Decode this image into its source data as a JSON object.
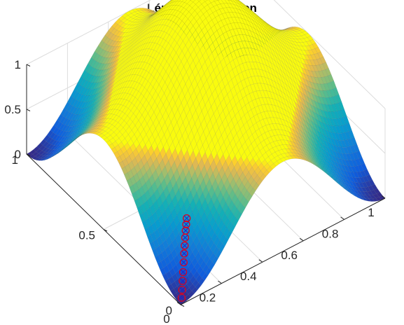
{
  "chart_data": {
    "type": "surface",
    "title": "Lépések a felületen",
    "xlabel": "",
    "ylabel": "",
    "zlabel": "",
    "xlim": [
      0,
      1
    ],
    "ylim": [
      0,
      1
    ],
    "zlim": [
      0,
      1
    ],
    "x_ticks": [
      "0",
      "0.2",
      "0.4",
      "0.6",
      "0.8",
      "1"
    ],
    "y_ticks": [
      "0",
      "0.5",
      "1"
    ],
    "z_ticks": [
      "0",
      "0.5",
      "1"
    ],
    "grid": true,
    "colormap": "parula",
    "surface": {
      "description": "z = 0.5*(2 - cos(2πx) - cos(2πy)), low in the centre, high on the edge midpoints",
      "peaks": [
        [
          0,
          0.5
        ],
        [
          1,
          0.5
        ],
        [
          0.5,
          0
        ],
        [
          0.5,
          1
        ]
      ],
      "minimum": [
        0.5,
        0.5
      ]
    },
    "steps": {
      "marker_colors": {
        "circle": "#e0001a",
        "cross": "#2222cc"
      },
      "points": [
        {
          "x": 0.02,
          "y": 0.02,
          "z": 0.02
        },
        {
          "x": 0.03,
          "y": 0.03,
          "z": 0.08
        },
        {
          "x": 0.04,
          "y": 0.04,
          "z": 0.15
        },
        {
          "x": 0.05,
          "y": 0.05,
          "z": 0.22
        },
        {
          "x": 0.06,
          "y": 0.06,
          "z": 0.3
        },
        {
          "x": 0.07,
          "y": 0.07,
          "z": 0.37
        },
        {
          "x": 0.08,
          "y": 0.08,
          "z": 0.43
        },
        {
          "x": 0.09,
          "y": 0.09,
          "z": 0.49
        },
        {
          "x": 0.1,
          "y": 0.1,
          "z": 0.54
        },
        {
          "x": 0.11,
          "y": 0.11,
          "z": 0.58
        },
        {
          "x": 0.12,
          "y": 0.12,
          "z": 0.62
        }
      ]
    }
  }
}
